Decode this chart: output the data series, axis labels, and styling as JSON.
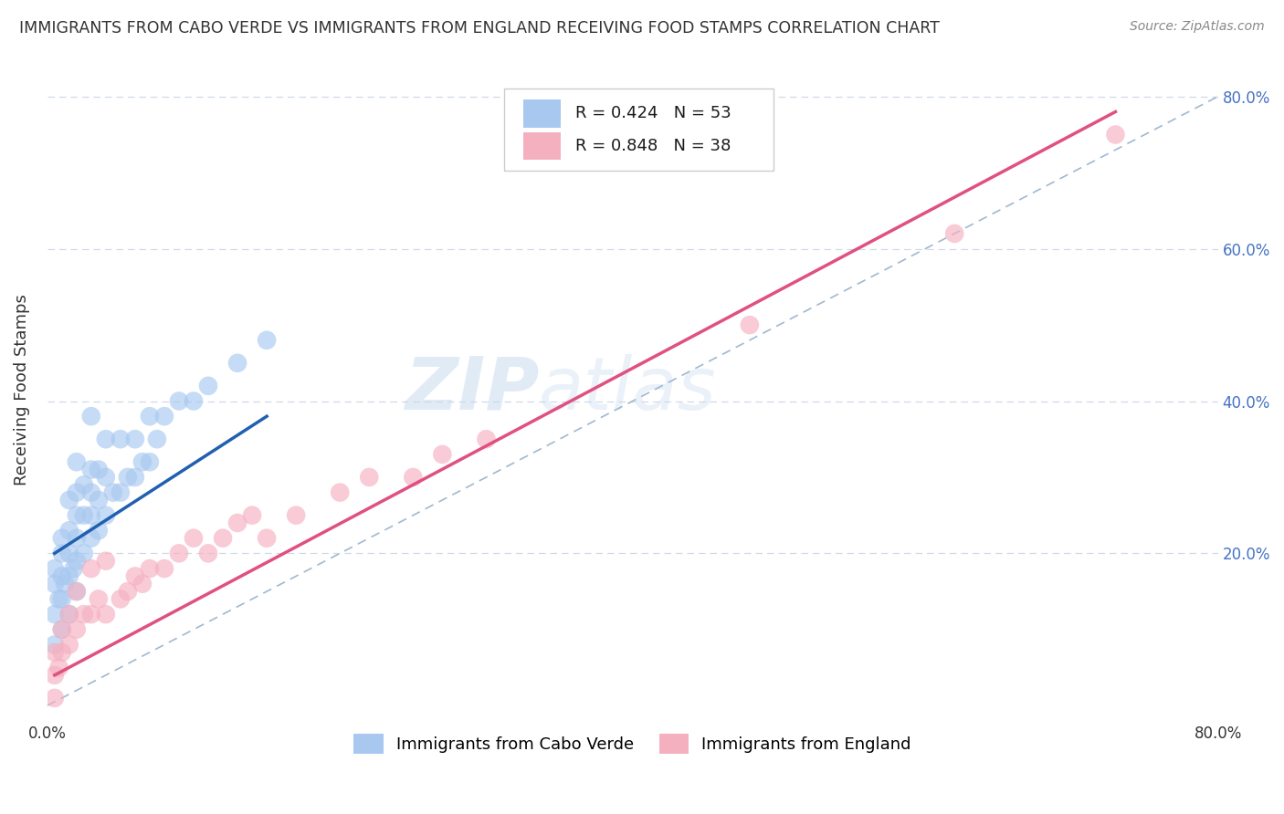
{
  "title": "IMMIGRANTS FROM CABO VERDE VS IMMIGRANTS FROM ENGLAND RECEIVING FOOD STAMPS CORRELATION CHART",
  "source": "Source: ZipAtlas.com",
  "ylabel": "Receiving Food Stamps",
  "xlim": [
    0,
    0.8
  ],
  "ylim": [
    -0.02,
    0.85
  ],
  "cabo_verde_R": 0.424,
  "cabo_verde_N": 53,
  "england_R": 0.848,
  "england_N": 38,
  "cabo_verde_color": "#a8c8f0",
  "england_color": "#f5b0c0",
  "cabo_verde_line_color": "#2060b0",
  "england_line_color": "#e05080",
  "watermark_color": "#d8e8f8",
  "grid_color": "#d0d8e8",
  "title_color": "#333333",
  "right_ytick_color": "#4472c4",
  "cabo_verde_x": [
    0.005,
    0.005,
    0.005,
    0.005,
    0.008,
    0.01,
    0.01,
    0.01,
    0.01,
    0.01,
    0.012,
    0.015,
    0.015,
    0.015,
    0.015,
    0.015,
    0.018,
    0.02,
    0.02,
    0.02,
    0.02,
    0.02,
    0.02,
    0.025,
    0.025,
    0.025,
    0.03,
    0.03,
    0.03,
    0.03,
    0.03,
    0.035,
    0.035,
    0.035,
    0.04,
    0.04,
    0.04,
    0.045,
    0.05,
    0.05,
    0.055,
    0.06,
    0.06,
    0.065,
    0.07,
    0.07,
    0.075,
    0.08,
    0.09,
    0.1,
    0.11,
    0.13,
    0.15
  ],
  "cabo_verde_y": [
    0.08,
    0.12,
    0.16,
    0.18,
    0.14,
    0.1,
    0.14,
    0.17,
    0.2,
    0.22,
    0.16,
    0.12,
    0.17,
    0.2,
    0.23,
    0.27,
    0.18,
    0.15,
    0.19,
    0.22,
    0.25,
    0.28,
    0.32,
    0.2,
    0.25,
    0.29,
    0.22,
    0.25,
    0.28,
    0.31,
    0.38,
    0.23,
    0.27,
    0.31,
    0.25,
    0.3,
    0.35,
    0.28,
    0.28,
    0.35,
    0.3,
    0.3,
    0.35,
    0.32,
    0.32,
    0.38,
    0.35,
    0.38,
    0.4,
    0.4,
    0.42,
    0.45,
    0.48
  ],
  "england_x": [
    0.005,
    0.005,
    0.005,
    0.008,
    0.01,
    0.01,
    0.015,
    0.015,
    0.02,
    0.02,
    0.025,
    0.03,
    0.03,
    0.035,
    0.04,
    0.04,
    0.05,
    0.055,
    0.06,
    0.065,
    0.07,
    0.08,
    0.09,
    0.1,
    0.11,
    0.12,
    0.13,
    0.14,
    0.15,
    0.17,
    0.2,
    0.22,
    0.25,
    0.27,
    0.3,
    0.48,
    0.62,
    0.73
  ],
  "england_y": [
    0.01,
    0.04,
    0.07,
    0.05,
    0.07,
    0.1,
    0.08,
    0.12,
    0.1,
    0.15,
    0.12,
    0.12,
    0.18,
    0.14,
    0.12,
    0.19,
    0.14,
    0.15,
    0.17,
    0.16,
    0.18,
    0.18,
    0.2,
    0.22,
    0.2,
    0.22,
    0.24,
    0.25,
    0.22,
    0.25,
    0.28,
    0.3,
    0.3,
    0.33,
    0.35,
    0.5,
    0.62,
    0.75
  ],
  "cabo_verde_line_x": [
    0.005,
    0.15
  ],
  "cabo_verde_line_y": [
    0.2,
    0.38
  ],
  "england_line_x": [
    0.005,
    0.73
  ],
  "england_line_y": [
    0.04,
    0.78
  ]
}
